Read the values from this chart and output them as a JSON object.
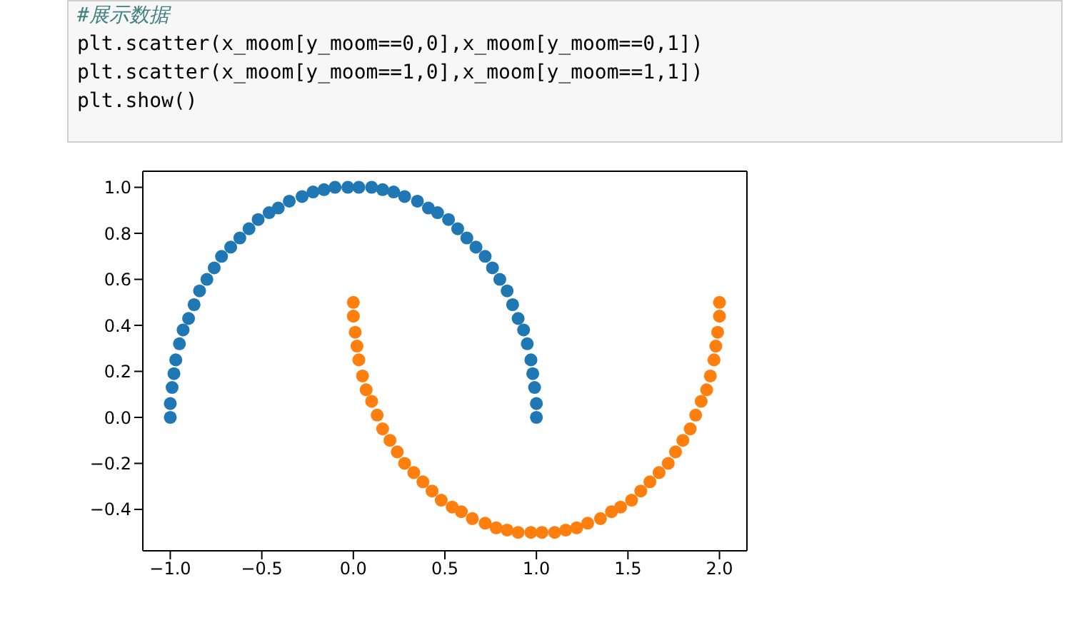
{
  "chart_data": {
    "type": "scatter",
    "marker": "circle",
    "annotations": [
      "#展示数据",
      "plt.scatter(x_moom[y_moom==0,0],x_moom[y_moom==0,1])",
      "plt.scatter(x_moom[y_moom==1,0],x_moom[y_moom==1,1])",
      "plt.show()"
    ],
    "xlim": [
      -1.15,
      2.15
    ],
    "ylim": [
      -0.58,
      1.07
    ],
    "xticks": [
      {
        "value": -1,
        "label": "−1.0"
      },
      {
        "value": -0.5,
        "label": "−0.5"
      },
      {
        "value": 0,
        "label": "0.0"
      },
      {
        "value": 0.5,
        "label": "0.5"
      },
      {
        "value": 1,
        "label": "1.0"
      },
      {
        "value": 1.5,
        "label": "1.5"
      },
      {
        "value": 2,
        "label": "2.0"
      }
    ],
    "yticks": [
      {
        "value": -0.4,
        "label": "−0.4"
      },
      {
        "value": -0.2,
        "label": "−0.2"
      },
      {
        "value": 0,
        "label": "0.0"
      },
      {
        "value": 0.2,
        "label": "0.2"
      },
      {
        "value": 0.4,
        "label": "0.4"
      },
      {
        "value": 0.6,
        "label": "0.6"
      },
      {
        "value": 0.8,
        "label": "0.8"
      },
      {
        "value": 1,
        "label": "1.0"
      }
    ],
    "series": [
      {
        "color": "#1f77b4",
        "x": [
          1.0,
          1.0,
          0.99,
          0.98,
          0.97,
          0.95,
          0.93,
          0.9,
          0.87,
          0.84,
          0.8,
          0.76,
          0.72,
          0.67,
          0.62,
          0.57,
          0.52,
          0.46,
          0.41,
          0.35,
          0.28,
          0.22,
          0.16,
          0.1,
          0.03,
          -0.03,
          -0.1,
          -0.16,
          -0.22,
          -0.28,
          -0.35,
          -0.41,
          -0.46,
          -0.52,
          -0.57,
          -0.62,
          -0.67,
          -0.72,
          -0.76,
          -0.8,
          -0.84,
          -0.87,
          -0.9,
          -0.93,
          -0.95,
          -0.97,
          -0.98,
          -0.99,
          -1.0,
          -1.0
        ],
        "values": [
          0.0,
          0.06,
          0.13,
          0.19,
          0.25,
          0.32,
          0.38,
          0.43,
          0.49,
          0.55,
          0.6,
          0.65,
          0.7,
          0.74,
          0.78,
          0.82,
          0.86,
          0.89,
          0.91,
          0.94,
          0.96,
          0.98,
          0.99,
          1.0,
          1.0,
          1.0,
          1.0,
          0.99,
          0.98,
          0.96,
          0.94,
          0.91,
          0.89,
          0.86,
          0.82,
          0.78,
          0.74,
          0.7,
          0.65,
          0.6,
          0.55,
          0.49,
          0.43,
          0.38,
          0.32,
          0.25,
          0.19,
          0.13,
          0.06,
          0.0
        ]
      },
      {
        "color": "#ff7f0e",
        "x": [
          0.0,
          0.0,
          0.01,
          0.02,
          0.03,
          0.05,
          0.07,
          0.1,
          0.13,
          0.16,
          0.2,
          0.24,
          0.28,
          0.33,
          0.38,
          0.43,
          0.48,
          0.54,
          0.59,
          0.65,
          0.72,
          0.78,
          0.84,
          0.9,
          0.97,
          1.03,
          1.1,
          1.16,
          1.22,
          1.28,
          1.35,
          1.41,
          1.46,
          1.52,
          1.57,
          1.62,
          1.67,
          1.72,
          1.76,
          1.8,
          1.84,
          1.87,
          1.9,
          1.93,
          1.95,
          1.97,
          1.98,
          1.99,
          2.0,
          2.0
        ],
        "values": [
          0.5,
          0.44,
          0.37,
          0.31,
          0.25,
          0.18,
          0.12,
          0.07,
          0.01,
          -0.05,
          -0.1,
          -0.15,
          -0.2,
          -0.24,
          -0.28,
          -0.32,
          -0.36,
          -0.39,
          -0.41,
          -0.44,
          -0.46,
          -0.48,
          -0.49,
          -0.5,
          -0.5,
          -0.5,
          -0.5,
          -0.49,
          -0.48,
          -0.46,
          -0.44,
          -0.41,
          -0.39,
          -0.36,
          -0.32,
          -0.28,
          -0.24,
          -0.2,
          -0.15,
          -0.1,
          -0.05,
          0.01,
          0.07,
          0.12,
          0.18,
          0.25,
          0.31,
          0.37,
          0.44,
          0.5
        ]
      }
    ]
  }
}
